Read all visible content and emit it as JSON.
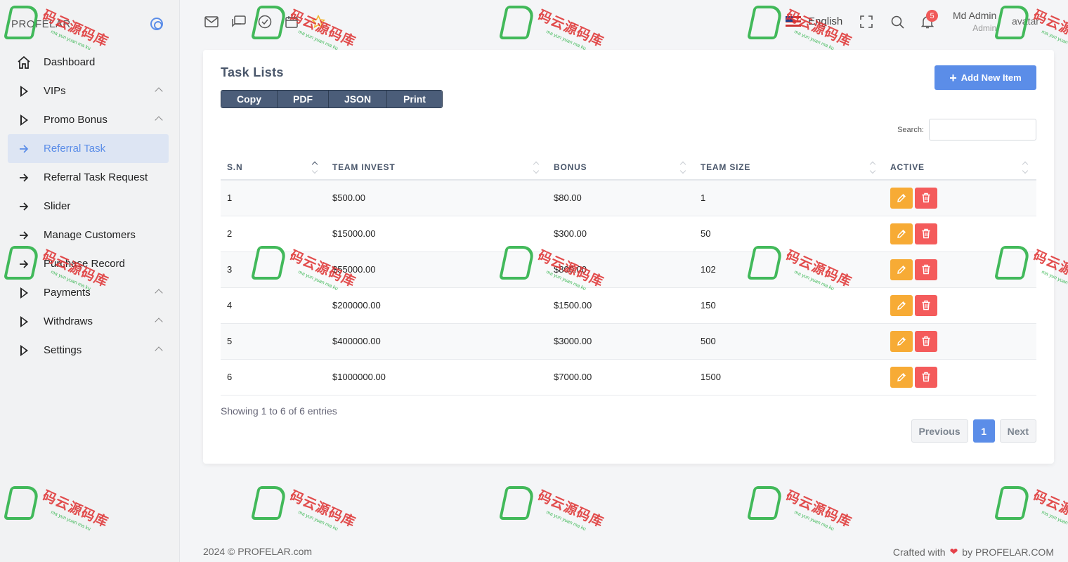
{
  "brand": {
    "name": "PROFELAR"
  },
  "sidebar": {
    "items": [
      {
        "label": "Dashboard",
        "icon": "home-icon",
        "expandable": false,
        "active": false
      },
      {
        "label": "VIPs",
        "icon": "play-icon",
        "expandable": true,
        "active": false
      },
      {
        "label": "Promo Bonus",
        "icon": "play-icon",
        "expandable": true,
        "active": false
      },
      {
        "label": "Referral Task",
        "icon": "arrow-right-icon",
        "expandable": false,
        "active": true
      },
      {
        "label": "Referral Task Request",
        "icon": "arrow-right-icon",
        "expandable": false,
        "active": false
      },
      {
        "label": "Slider",
        "icon": "arrow-right-icon",
        "expandable": false,
        "active": false
      },
      {
        "label": "Manage Customers",
        "icon": "arrow-right-icon",
        "expandable": false,
        "active": false
      },
      {
        "label": "Purchase Record",
        "icon": "arrow-right-icon",
        "expandable": false,
        "active": false
      },
      {
        "label": "Payments",
        "icon": "play-icon",
        "expandable": true,
        "active": false
      },
      {
        "label": "Withdraws",
        "icon": "play-icon",
        "expandable": true,
        "active": false
      },
      {
        "label": "Settings",
        "icon": "play-icon",
        "expandable": true,
        "active": false
      }
    ]
  },
  "topbar": {
    "language": "English",
    "notification_count": "5",
    "user_name": "Md Admin",
    "user_role": "Admin",
    "avatar_alt": "avatar"
  },
  "card": {
    "title": "Task Lists",
    "add_button": "Add New Item",
    "export_buttons": [
      "Copy",
      "PDF",
      "JSON",
      "Print"
    ],
    "search_label": "Search:",
    "search_value": ""
  },
  "table": {
    "headers": [
      "S.N",
      "TEAM INVEST",
      "BONUS",
      "TEAM SIZE",
      "ACTIVE"
    ],
    "rows": [
      {
        "sn": "1",
        "invest": "$500.00",
        "bonus": "$80.00",
        "size": "1"
      },
      {
        "sn": "2",
        "invest": "$15000.00",
        "bonus": "$300.00",
        "size": "50"
      },
      {
        "sn": "3",
        "invest": "$55000.00",
        "bonus": "$800.00",
        "size": "102"
      },
      {
        "sn": "4",
        "invest": "$200000.00",
        "bonus": "$1500.00",
        "size": "150"
      },
      {
        "sn": "5",
        "invest": "$400000.00",
        "bonus": "$3000.00",
        "size": "500"
      },
      {
        "sn": "6",
        "invest": "$1000000.00",
        "bonus": "$7000.00",
        "size": "1500"
      }
    ]
  },
  "pagination": {
    "info": "Showing 1 to 6 of 6 entries",
    "previous": "Previous",
    "current": "1",
    "next": "Next"
  },
  "footer": {
    "copyright": "2024 © PROFELAR.com",
    "crafted_prefix": "Crafted with",
    "crafted_suffix": "by PROFELAR.COM"
  },
  "watermark": {
    "text": "码云源码库",
    "subtext": "ma yun yuan ma ku"
  },
  "colors": {
    "accent": "#5b8de8",
    "edit": "#f7ab35",
    "delete": "#f45b5b",
    "export": "#4b5d79"
  }
}
